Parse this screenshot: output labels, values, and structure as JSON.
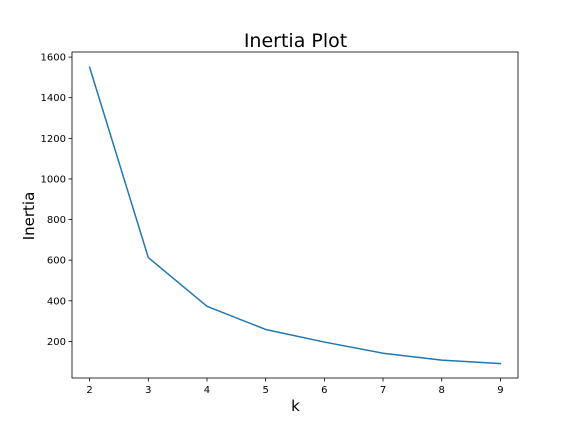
{
  "chart_data": {
    "type": "line",
    "title": "Inertia Plot",
    "xlabel": "k",
    "ylabel": "Inertia",
    "xlim": [
      1.7,
      9.3
    ],
    "ylim": [
      20,
      1625
    ],
    "xticks": [
      2,
      3,
      4,
      5,
      6,
      7,
      8,
      9
    ],
    "yticks": [
      200,
      400,
      600,
      800,
      1000,
      1200,
      1400,
      1600
    ],
    "grid": false,
    "legend": "none",
    "series": [
      {
        "color": "#1f77b4",
        "x": [
          2,
          3,
          4,
          5,
          6,
          7,
          8,
          9
        ],
        "y": [
          1550,
          613,
          373,
          259,
          197,
          142,
          108,
          91
        ]
      }
    ]
  }
}
